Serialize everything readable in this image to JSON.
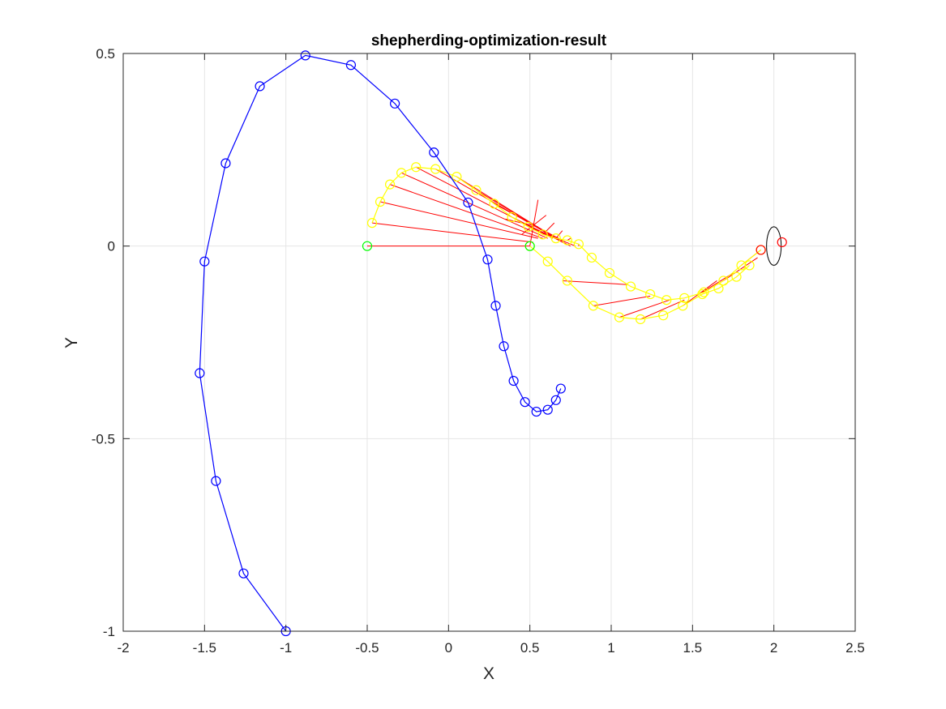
{
  "chart_data": {
    "type": "line",
    "title": "shepherding-optimization-result",
    "xlabel": "X",
    "ylabel": "Y",
    "xlim": [
      -2,
      2.5
    ],
    "ylim": [
      -1,
      0.5
    ],
    "xticks": [
      -2,
      -1.5,
      -1,
      -0.5,
      0,
      0.5,
      1,
      1.5,
      2,
      2.5
    ],
    "xtick_labels": [
      "-2",
      "-1.5",
      "-1",
      "-0.5",
      "0",
      "0.5",
      "1",
      "1.5",
      "2",
      "2.5"
    ],
    "yticks": [
      -1,
      -0.5,
      0,
      0.5
    ],
    "ytick_labels": [
      "-1",
      "-0.5",
      "0",
      "0.5"
    ],
    "grid": true,
    "colors": {
      "shepherd": "#0000ff",
      "sheep": "#ffff00",
      "links": "#ff0000",
      "start": "#00ff00",
      "goal_markers": "#ff0000",
      "goal_region": "#000000",
      "grid": "#e6e6e6",
      "axes": "#262626"
    },
    "series": [
      {
        "key": "shepherd",
        "x": [
          -1.0,
          -1.26,
          -1.43,
          -1.53,
          -1.5,
          -1.37,
          -1.16,
          -0.88,
          -0.6,
          -0.33,
          -0.09,
          0.12,
          0.24,
          0.29,
          0.34,
          0.4,
          0.47,
          0.54,
          0.61,
          0.66,
          0.69
        ],
        "y": [
          -1.0,
          -0.85,
          -0.61,
          -0.33,
          -0.04,
          0.215,
          0.415,
          0.495,
          0.47,
          0.37,
          0.243,
          0.113,
          -0.035,
          -0.155,
          -0.26,
          -0.35,
          -0.405,
          -0.43,
          -0.425,
          -0.4,
          -0.37
        ]
      },
      {
        "key": "sheep",
        "x": [
          -0.47,
          -0.42,
          -0.36,
          -0.29,
          -0.2,
          -0.08,
          0.05,
          0.17,
          0.28,
          0.39,
          0.49,
          0.58,
          0.66,
          0.73,
          0.8,
          0.88,
          0.99,
          1.12,
          1.24,
          1.34,
          1.45,
          1.57,
          1.69,
          1.8,
          1.92,
          0.5,
          0.61,
          0.73,
          0.89,
          1.05,
          1.18,
          1.32,
          1.44,
          1.56,
          1.66,
          1.77,
          1.85
        ],
        "y": [
          0.06,
          0.115,
          0.16,
          0.19,
          0.205,
          0.2,
          0.18,
          0.145,
          0.11,
          0.075,
          0.05,
          0.03,
          0.02,
          0.015,
          0.005,
          -0.03,
          -0.07,
          -0.105,
          -0.125,
          -0.14,
          -0.135,
          -0.12,
          -0.09,
          -0.05,
          -0.01,
          0.0,
          -0.04,
          -0.09,
          -0.155,
          -0.185,
          -0.19,
          -0.18,
          -0.155,
          -0.125,
          -0.11,
          -0.08,
          -0.05
        ]
      }
    ],
    "link_targets": {
      "x": [
        0.5,
        0.52,
        0.55,
        0.58,
        0.61,
        0.64,
        0.66,
        0.68,
        0.7,
        0.72,
        0.75,
        0.78,
        0.5,
        0.55,
        0.6,
        0.65,
        0.7,
        0.75,
        0.8,
        1.1,
        1.24,
        1.36,
        1.45,
        1.65,
        1.75,
        1.9,
        1.92
      ],
      "y": [
        0.0,
        0.01,
        0.02,
        0.02,
        0.02,
        0.02,
        0.02,
        0.015,
        0.01,
        0.01,
        0.0,
        0.0,
        0.0,
        0.05,
        0.08,
        0.06,
        0.04,
        0.02,
        0.0,
        -0.1,
        -0.13,
        -0.14,
        -0.14,
        -0.09,
        -0.07,
        -0.03,
        -0.01
      ]
    },
    "link_sources": {
      "x": [
        -0.5,
        -0.47,
        -0.42,
        -0.36,
        -0.29,
        -0.2,
        -0.08,
        0.05,
        0.17,
        0.28,
        0.39,
        0.49,
        0.55,
        0.35,
        0.45,
        0.58,
        0.66,
        0.73,
        0.8,
        0.7,
        0.89,
        1.05,
        1.18,
        1.44,
        1.56,
        1.69,
        1.8
      ],
      "y": [
        0.0,
        0.06,
        0.115,
        0.16,
        0.19,
        0.205,
        0.2,
        0.18,
        0.145,
        0.11,
        0.075,
        0.05,
        0.12,
        0.07,
        0.03,
        0.03,
        0.02,
        0.015,
        0.005,
        -0.09,
        -0.155,
        -0.185,
        -0.19,
        -0.155,
        -0.12,
        -0.09,
        -0.05
      ]
    },
    "start_point": {
      "x": -0.5,
      "y": 0.0
    },
    "start_point_2": {
      "x": 0.5,
      "y": 0.0
    },
    "goal_markers": {
      "x": [
        1.92,
        2.05
      ],
      "y": [
        -0.01,
        0.01
      ]
    },
    "goal_region": {
      "cx": 2.0,
      "cy": 0.0,
      "rx": 0.045,
      "ry": 0.05
    }
  }
}
